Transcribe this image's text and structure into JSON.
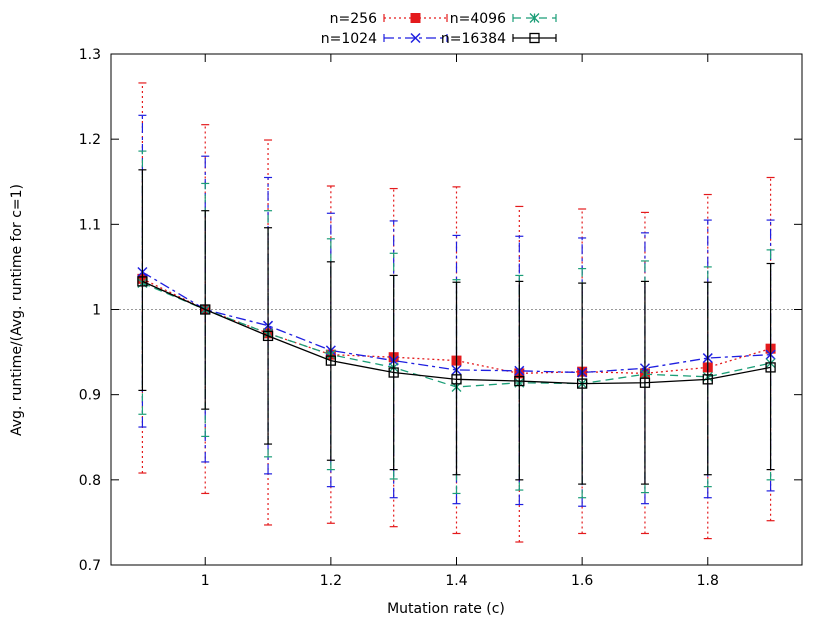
{
  "chart_data": {
    "type": "line",
    "title": "",
    "xlabel": "Mutation rate (c)",
    "ylabel": "Avg. runtime/(Avg. runtime for c=1)",
    "xlim": [
      0.85,
      1.95
    ],
    "ylim": [
      0.7,
      1.3
    ],
    "x_ticks": [
      1,
      1.2,
      1.4,
      1.6,
      1.8
    ],
    "x_tick_labels": [
      "1",
      "1.2",
      "1.4",
      "1.6",
      "1.8"
    ],
    "y_ticks": [
      0.7,
      0.8,
      0.9,
      1,
      1.1,
      1.2,
      1.3
    ],
    "y_tick_labels": [
      "0.7",
      "0.8",
      "0.9",
      "1",
      "1.1",
      "1.2",
      "1.3"
    ],
    "reference_line": {
      "y": 1,
      "style": "dotted",
      "color": "#999999"
    },
    "grid": false,
    "legend_position": "top-center",
    "x": [
      0.9,
      1.0,
      1.1,
      1.2,
      1.3,
      1.4,
      1.5,
      1.6,
      1.7,
      1.8,
      1.9
    ],
    "series": [
      {
        "name": "n=256",
        "color": "#e41a1c",
        "dash": "dotted",
        "marker": "filled-square",
        "values": [
          1.036,
          1.0,
          0.972,
          0.947,
          0.944,
          0.94,
          0.925,
          0.927,
          0.925,
          0.932,
          0.954
        ],
        "error_low": [
          0.808,
          0.784,
          0.747,
          0.749,
          0.745,
          0.737,
          0.727,
          0.737,
          0.737,
          0.731,
          0.752
        ],
        "error_high": [
          1.266,
          1.217,
          1.199,
          1.145,
          1.142,
          1.144,
          1.121,
          1.118,
          1.114,
          1.135,
          1.155
        ]
      },
      {
        "name": "n=1024",
        "color": "#1f1fe0",
        "dash": "dash-dot",
        "marker": "x",
        "values": [
          1.044,
          1.0,
          0.981,
          0.952,
          0.94,
          0.929,
          0.928,
          0.926,
          0.931,
          0.943,
          0.947
        ],
        "error_low": [
          0.862,
          0.821,
          0.807,
          0.792,
          0.779,
          0.772,
          0.771,
          0.769,
          0.772,
          0.779,
          0.787
        ],
        "error_high": [
          1.228,
          1.18,
          1.155,
          1.113,
          1.104,
          1.087,
          1.086,
          1.084,
          1.09,
          1.105,
          1.105
        ]
      },
      {
        "name": "n=4096",
        "color": "#1b9e77",
        "dash": "dashed",
        "marker": "asterisk",
        "values": [
          1.031,
          1.0,
          0.972,
          0.947,
          0.932,
          0.909,
          0.914,
          0.913,
          0.924,
          0.921,
          0.937
        ],
        "error_low": [
          0.877,
          0.851,
          0.827,
          0.812,
          0.801,
          0.784,
          0.788,
          0.779,
          0.785,
          0.792,
          0.8
        ],
        "error_high": [
          1.186,
          1.148,
          1.116,
          1.083,
          1.066,
          1.035,
          1.04,
          1.048,
          1.057,
          1.05,
          1.07
        ]
      },
      {
        "name": "n=16384",
        "color": "#000000",
        "dash": "solid",
        "marker": "open-square",
        "values": [
          1.033,
          1.0,
          0.969,
          0.94,
          0.926,
          0.918,
          0.916,
          0.913,
          0.914,
          0.918,
          0.932
        ],
        "error_low": [
          0.905,
          0.883,
          0.842,
          0.823,
          0.812,
          0.806,
          0.8,
          0.795,
          0.795,
          0.806,
          0.812
        ],
        "error_high": [
          1.164,
          1.116,
          1.096,
          1.056,
          1.04,
          1.032,
          1.033,
          1.031,
          1.033,
          1.032,
          1.054
        ]
      }
    ]
  }
}
